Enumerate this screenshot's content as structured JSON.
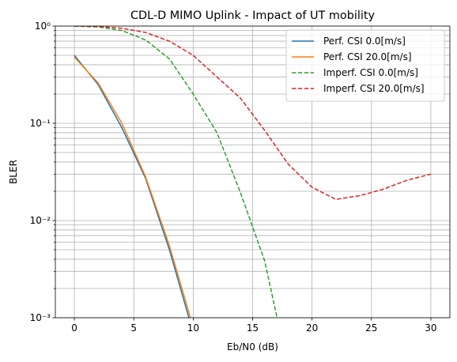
{
  "chart_data": {
    "type": "line",
    "title": "CDL-D MIMO Uplink - Impact of UT mobility",
    "xlabel": "Eb/N0 (dB)",
    "ylabel": "BLER",
    "xlim": [
      -1.6,
      31.6
    ],
    "xticks": [
      0,
      5,
      10,
      15,
      20,
      25,
      30
    ],
    "ylim": [
      0.001,
      1
    ],
    "log_y": true,
    "yticks": [
      {
        "value": 0.001,
        "label": "10⁻³"
      },
      {
        "value": 0.01,
        "label": "10⁻²"
      },
      {
        "value": 0.1,
        "label": "10⁻¹"
      },
      {
        "value": 1,
        "label": "10⁰"
      }
    ],
    "yminorticks": [
      0.002,
      0.003,
      0.004,
      0.005,
      0.006,
      0.007,
      0.008,
      0.009,
      0.02,
      0.03,
      0.04,
      0.05,
      0.06,
      0.07,
      0.08,
      0.09,
      0.2,
      0.3,
      0.4,
      0.5,
      0.6,
      0.7,
      0.8,
      0.9
    ],
    "grid": true,
    "legend": "upper right",
    "series": [
      {
        "name": "Perf. CSI 0.0[m/s]",
        "color": "#1f77b4",
        "linestyle": "solid",
        "x": [
          0,
          2,
          4,
          6,
          8,
          10
        ],
        "values": [
          0.5,
          0.25,
          0.09,
          0.027,
          0.005,
          0.0007
        ]
      },
      {
        "name": "Perf. CSI 20.0[m/s]",
        "color": "#ff7f0e",
        "linestyle": "solid",
        "x": [
          0,
          2,
          4,
          6,
          8,
          10
        ],
        "values": [
          0.48,
          0.26,
          0.1,
          0.028,
          0.0055,
          0.0008
        ]
      },
      {
        "name": "Imperf. CSI 0.0[m/s]",
        "color": "#2ca02c",
        "linestyle": "dashed",
        "x": [
          0,
          2,
          4,
          6,
          8,
          10,
          12,
          14,
          16,
          18
        ],
        "values": [
          1.0,
          0.98,
          0.9,
          0.72,
          0.46,
          0.2,
          0.08,
          0.019,
          0.0039,
          0.0003
        ]
      },
      {
        "name": "Imperf. CSI 20.0[m/s]",
        "color": "#d62728",
        "linestyle": "dashed",
        "x": [
          0,
          2,
          4,
          6,
          8,
          10,
          12,
          14,
          16,
          18,
          20,
          22,
          24,
          26,
          28,
          30
        ],
        "values": [
          1.0,
          0.99,
          0.95,
          0.86,
          0.7,
          0.5,
          0.3,
          0.18,
          0.085,
          0.038,
          0.022,
          0.0165,
          0.018,
          0.021,
          0.026,
          0.03
        ]
      }
    ]
  }
}
